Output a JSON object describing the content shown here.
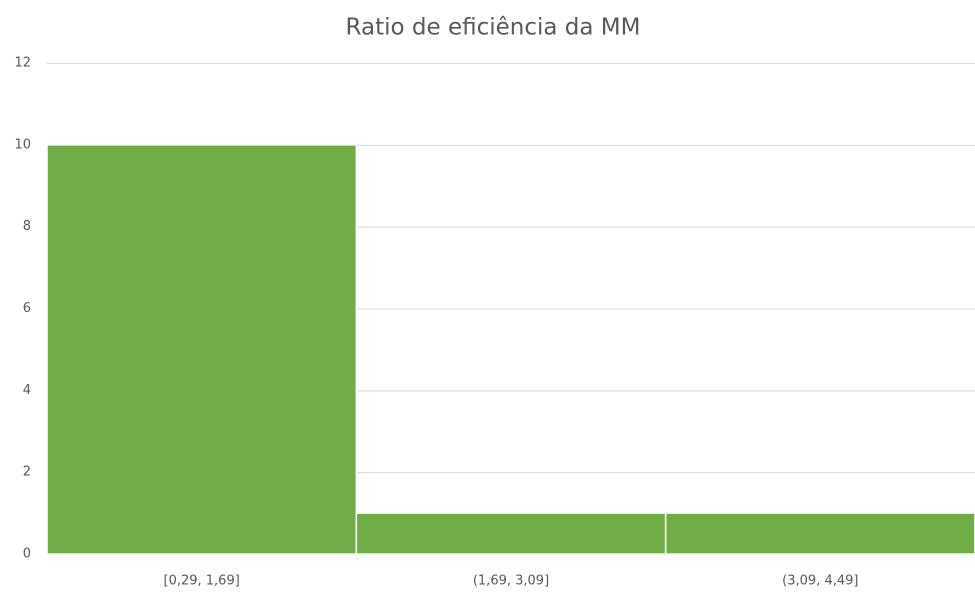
{
  "chart_data": {
    "type": "bar",
    "title": "Ratio de eficiência da MM",
    "categories": [
      "[0,29, 1,69]",
      "(1,69, 3,09]",
      "(3,09, 4,49]"
    ],
    "values": [
      10,
      1,
      1
    ],
    "color": "#70ad47",
    "ylim": [
      0,
      12
    ],
    "yticks": [
      0,
      2,
      4,
      6,
      8,
      10,
      12
    ],
    "grid": true
  }
}
